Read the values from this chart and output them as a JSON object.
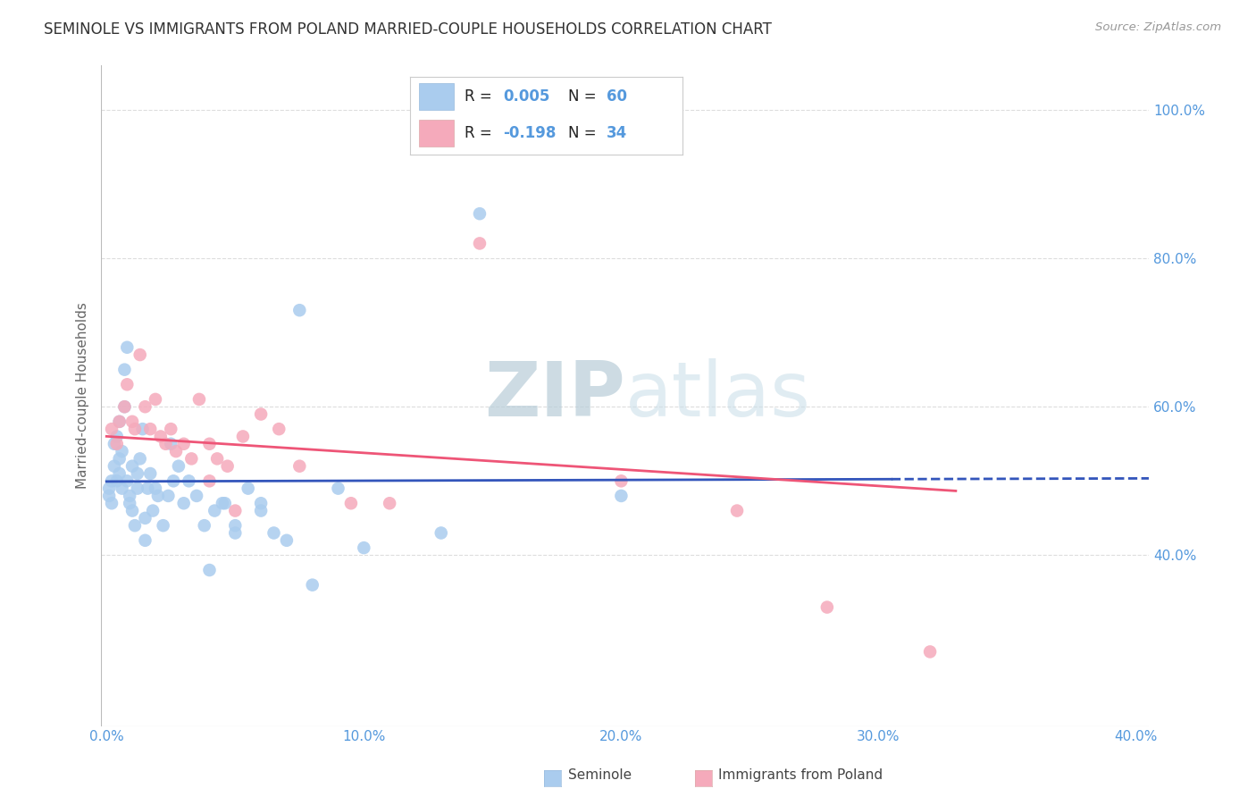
{
  "title": "SEMINOLE VS IMMIGRANTS FROM POLAND MARRIED-COUPLE HOUSEHOLDS CORRELATION CHART",
  "source": "Source: ZipAtlas.com",
  "ylabel": "Married-couple Households",
  "x_tick_labels": [
    "0.0%",
    "10.0%",
    "20.0%",
    "30.0%",
    "40.0%"
  ],
  "x_tick_values": [
    0.0,
    0.1,
    0.2,
    0.3,
    0.4
  ],
  "y_tick_labels": [
    "100.0%",
    "80.0%",
    "60.0%",
    "40.0%"
  ],
  "y_tick_values": [
    1.0,
    0.8,
    0.6,
    0.4
  ],
  "xlim": [
    -0.002,
    0.405
  ],
  "ylim": [
    0.17,
    1.06
  ],
  "legend_seminole": "Seminole",
  "legend_poland": "Immigrants from Poland",
  "R_seminole": 0.005,
  "N_seminole": 60,
  "R_poland": -0.198,
  "N_poland": 34,
  "color_seminole": "#AACCEE",
  "color_poland": "#F5AABB",
  "color_trendline_seminole": "#3355BB",
  "color_trendline_poland": "#EE5577",
  "color_axis_labels": "#5599DD",
  "watermark_color": "#D8E8F2",
  "grid_color": "#DDDDDD",
  "background_color": "#FFFFFF",
  "seminole_x": [
    0.001,
    0.001,
    0.002,
    0.002,
    0.003,
    0.003,
    0.004,
    0.004,
    0.005,
    0.005,
    0.005,
    0.006,
    0.006,
    0.007,
    0.007,
    0.008,
    0.008,
    0.009,
    0.009,
    0.01,
    0.01,
    0.011,
    0.012,
    0.012,
    0.013,
    0.014,
    0.015,
    0.016,
    0.017,
    0.018,
    0.019,
    0.02,
    0.022,
    0.024,
    0.026,
    0.028,
    0.03,
    0.032,
    0.035,
    0.038,
    0.042,
    0.046,
    0.05,
    0.055,
    0.06,
    0.065,
    0.075,
    0.09,
    0.13,
    0.145,
    0.015,
    0.025,
    0.04,
    0.045,
    0.05,
    0.06,
    0.07,
    0.08,
    0.1,
    0.2
  ],
  "seminole_y": [
    0.49,
    0.48,
    0.5,
    0.47,
    0.52,
    0.55,
    0.5,
    0.56,
    0.53,
    0.51,
    0.58,
    0.54,
    0.49,
    0.6,
    0.65,
    0.68,
    0.5,
    0.48,
    0.47,
    0.52,
    0.46,
    0.44,
    0.49,
    0.51,
    0.53,
    0.57,
    0.45,
    0.49,
    0.51,
    0.46,
    0.49,
    0.48,
    0.44,
    0.48,
    0.5,
    0.52,
    0.47,
    0.5,
    0.48,
    0.44,
    0.46,
    0.47,
    0.43,
    0.49,
    0.47,
    0.43,
    0.73,
    0.49,
    0.43,
    0.86,
    0.42,
    0.55,
    0.38,
    0.47,
    0.44,
    0.46,
    0.42,
    0.36,
    0.41,
    0.48
  ],
  "poland_x": [
    0.002,
    0.004,
    0.005,
    0.007,
    0.008,
    0.01,
    0.011,
    0.013,
    0.015,
    0.017,
    0.019,
    0.021,
    0.023,
    0.025,
    0.027,
    0.03,
    0.033,
    0.036,
    0.04,
    0.043,
    0.047,
    0.053,
    0.06,
    0.067,
    0.075,
    0.095,
    0.11,
    0.145,
    0.2,
    0.245,
    0.04,
    0.05,
    0.28,
    0.32
  ],
  "poland_y": [
    0.57,
    0.55,
    0.58,
    0.6,
    0.63,
    0.58,
    0.57,
    0.67,
    0.6,
    0.57,
    0.61,
    0.56,
    0.55,
    0.57,
    0.54,
    0.55,
    0.53,
    0.61,
    0.55,
    0.53,
    0.52,
    0.56,
    0.59,
    0.57,
    0.52,
    0.47,
    0.47,
    0.82,
    0.5,
    0.46,
    0.5,
    0.46,
    0.33,
    0.27
  ],
  "trendline_s_x0": 0.0,
  "trendline_s_x1": 0.305,
  "trendline_s_x1_dashed": 0.405,
  "trendline_p_x0": 0.0,
  "trendline_p_x1": 0.33
}
